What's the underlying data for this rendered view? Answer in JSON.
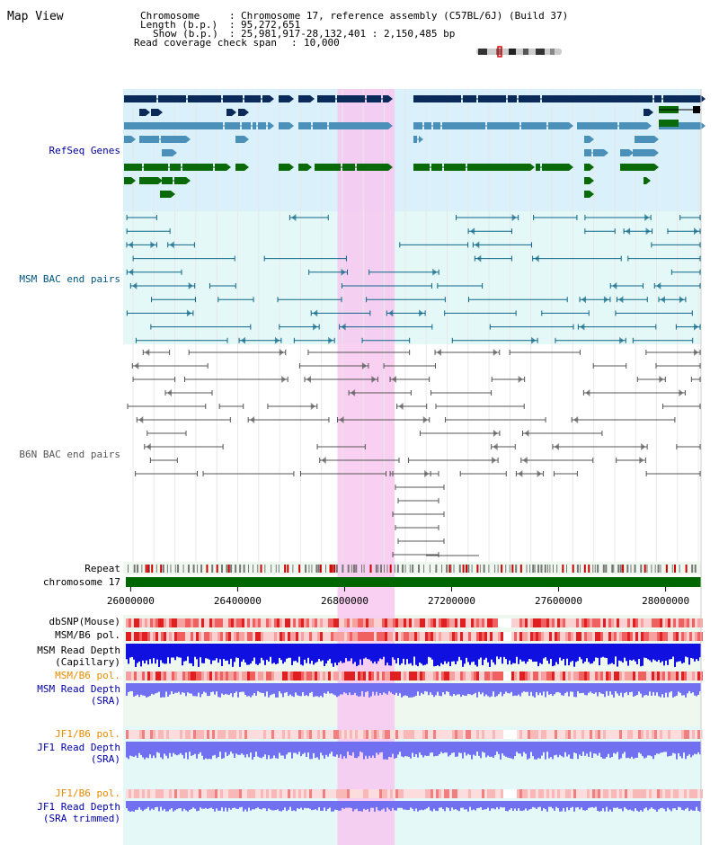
{
  "app_title": "Map View",
  "info": {
    "chromosome_key": "Chromosome",
    "chromosome_value": "Chromosome 17, reference assembly (C57BL/6J) (Build 37)",
    "length_key": "Length (b.p.)",
    "length_value": "95,272,651",
    "show_key": "Show (b.p.)",
    "show_value": "25,981,917-28,132,401 : 2,150,485 bp",
    "coverage_key": "Read coverage check span",
    "coverage_value": "10,000"
  },
  "tracks": {
    "refseq": {
      "label": "RefSeq Genes",
      "color": "#000099",
      "bg": "#daf0fa"
    },
    "msm_bac": {
      "label": "MSM BAC end pairs",
      "color": "#00557f",
      "bg": "#e4f8f8"
    },
    "b6n_bac": {
      "label": "B6N BAC end pairs",
      "color": "#555555",
      "bg": "#ffffff"
    },
    "repeat": {
      "label": "Repeat"
    },
    "chromosome": {
      "label": "chromosome 17"
    },
    "dbsnp": {
      "label": "dbSNP(Mouse)"
    },
    "msm_b6_pol_1": {
      "label": "MSM/B6 pol."
    },
    "msm_read_depth_cap": {
      "label_line1": "MSM Read Depth",
      "label_line2": "(Capillary)"
    },
    "msm_b6_pol_2": {
      "label": "MSM/B6 pol.",
      "color": "#e88a00"
    },
    "msm_read_depth_sra": {
      "label_line1": "MSM Read Depth",
      "label_line2": "(SRA)",
      "color": "#0000aa"
    },
    "jf1_b6_pol_1": {
      "label": "JF1/B6 pol.",
      "color": "#e88a00"
    },
    "jf1_read_depth_sra": {
      "label_line1": "JF1 Read Depth",
      "label_line2": "(SRA)",
      "color": "#0000aa"
    },
    "jf1_b6_pol_2": {
      "label": "JF1/B6 pol.",
      "color": "#e88a00"
    },
    "jf1_read_depth_trim": {
      "label_line1": "JF1 Read Depth",
      "label_line2": "(SRA trimmed)",
      "color": "#0000aa"
    }
  },
  "axis": {
    "start_bp": 25981917,
    "end_bp": 28132401,
    "ticks": [
      "26000000",
      "26400000",
      "26800000",
      "27200000",
      "27600000",
      "28000000"
    ],
    "highlight_bp": [
      26800000,
      26960000
    ]
  },
  "colors": {
    "refseq_dark": "#0a2a5a",
    "refseq_mid": "#4a90b8",
    "refseq_green": "#0a6a0a",
    "chromosome_bar": "#006600",
    "highlight": "#f8c8f0",
    "snp_red": "#e84040",
    "depth_blue": "#1010e0",
    "depth_blue_light": "#7070f0"
  }
}
